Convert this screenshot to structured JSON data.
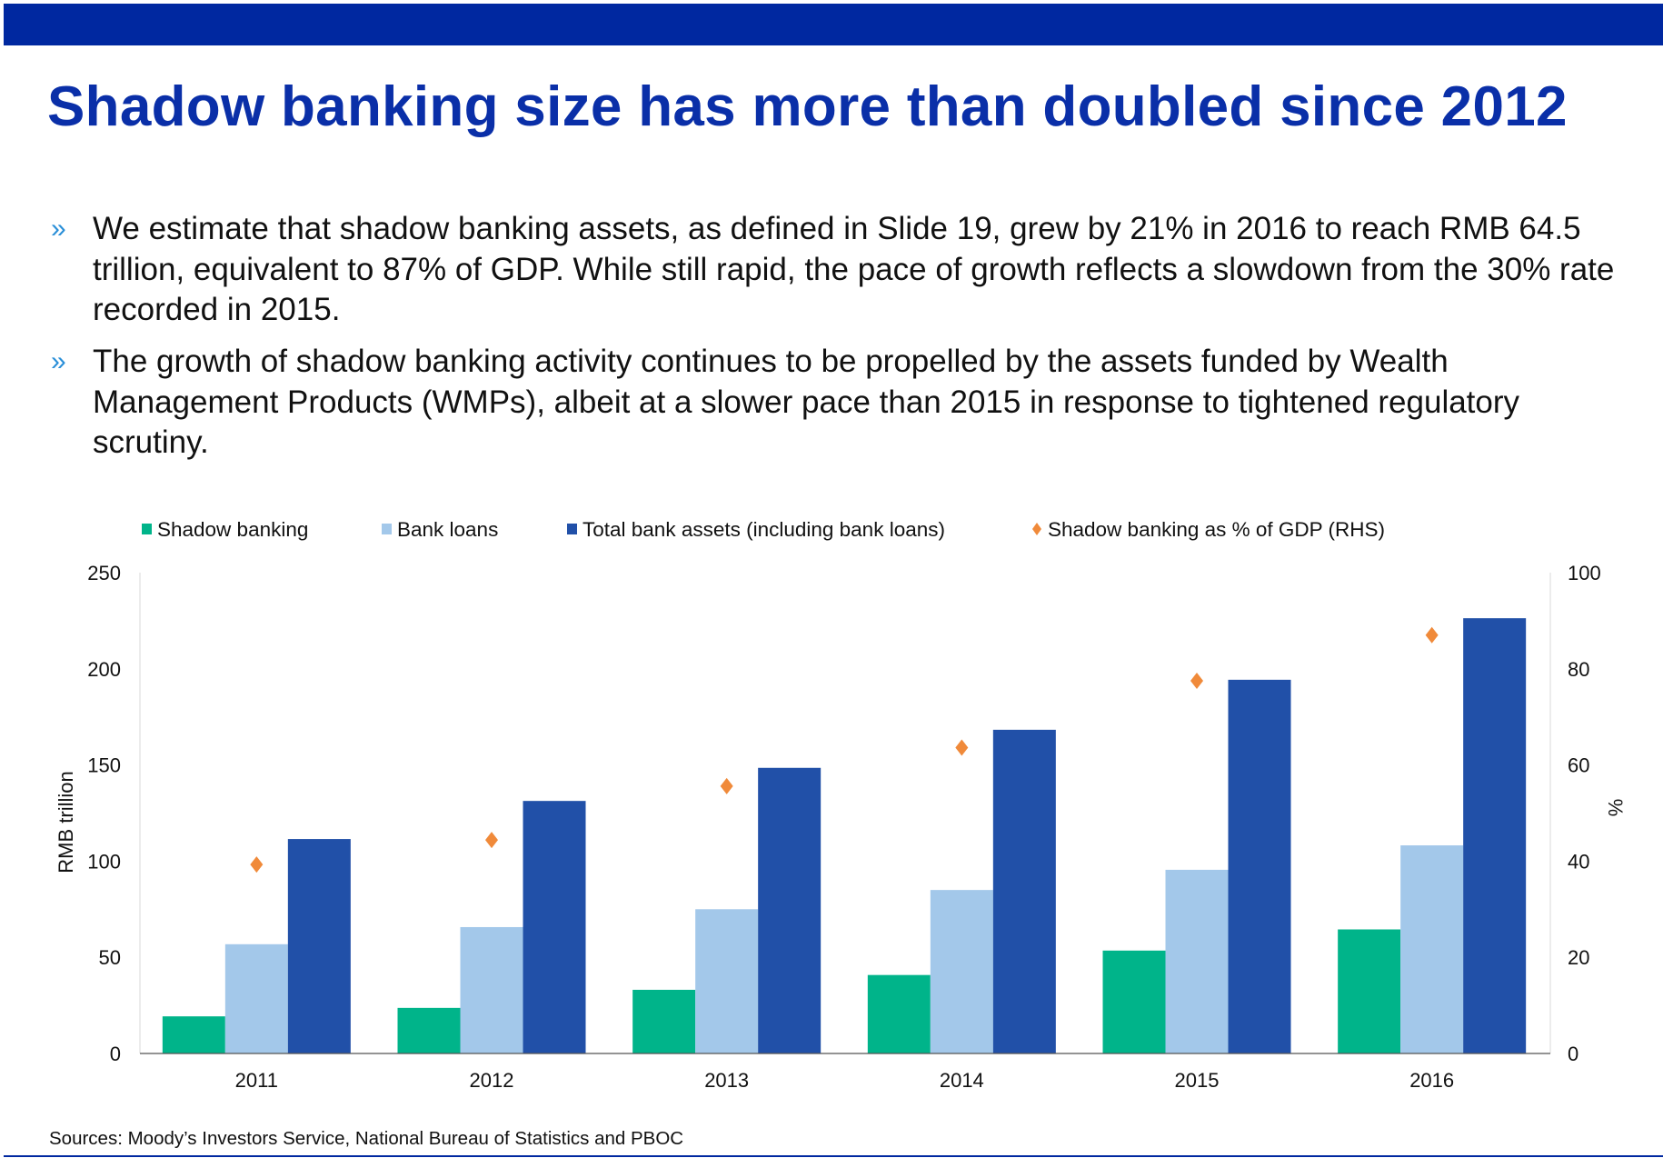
{
  "title": "Shadow banking size has more than doubled since 2012",
  "bullets": [
    "We estimate that shadow banking assets, as defined in Slide 19, grew by 21% in 2016 to reach RMB 64.5 trillion, equivalent to 87% of GDP. While still rapid, the pace of growth reflects a slowdown from the 30% rate recorded in 2015.",
    "The growth of shadow banking activity continues to be propelled by the assets funded by Wealth Management Products (WMPs), albeit at a slower pace than 2015 in response to tightened regulatory scrutiny."
  ],
  "bullet_marker": "»",
  "sources": "Sources: Moody’s Investors Service, National Bureau of Statistics and PBOC",
  "colors": {
    "brand": "#0028a0",
    "shadow": "#00b48a",
    "loans": "#a3c8ea",
    "total": "#2150a8",
    "gdp": "#f08a3a"
  },
  "chart_data": {
    "type": "bar",
    "categories": [
      "2011",
      "2012",
      "2013",
      "2014",
      "2015",
      "2016"
    ],
    "series": [
      {
        "name": "Shadow banking",
        "axis": "left",
        "type": "bar",
        "values": [
          19.3,
          23.7,
          33.1,
          40.8,
          53.5,
          64.5
        ]
      },
      {
        "name": "Bank loans",
        "axis": "left",
        "type": "bar",
        "values": [
          56.8,
          65.7,
          75.0,
          85.0,
          95.5,
          108.2
        ]
      },
      {
        "name": "Total bank assets (including bank loans)",
        "axis": "left",
        "type": "bar",
        "values": [
          111.5,
          131.3,
          148.5,
          168.3,
          194.3,
          226.3
        ]
      },
      {
        "name": "Shadow banking as % of GDP (RHS)",
        "axis": "right",
        "type": "scatter",
        "marker": "diamond",
        "values": [
          39.3,
          44.4,
          55.6,
          63.6,
          77.5,
          87.0
        ]
      }
    ],
    "ylabel": "RMB trillion",
    "y2label": "%",
    "ylim": [
      0,
      250
    ],
    "y2lim": [
      0,
      100
    ],
    "yticks": [
      "0",
      "50",
      "100",
      "150",
      "200",
      "250"
    ],
    "y2ticks": [
      "0",
      "20",
      "40",
      "60",
      "80",
      "100"
    ],
    "grid": false,
    "legend": "top"
  }
}
